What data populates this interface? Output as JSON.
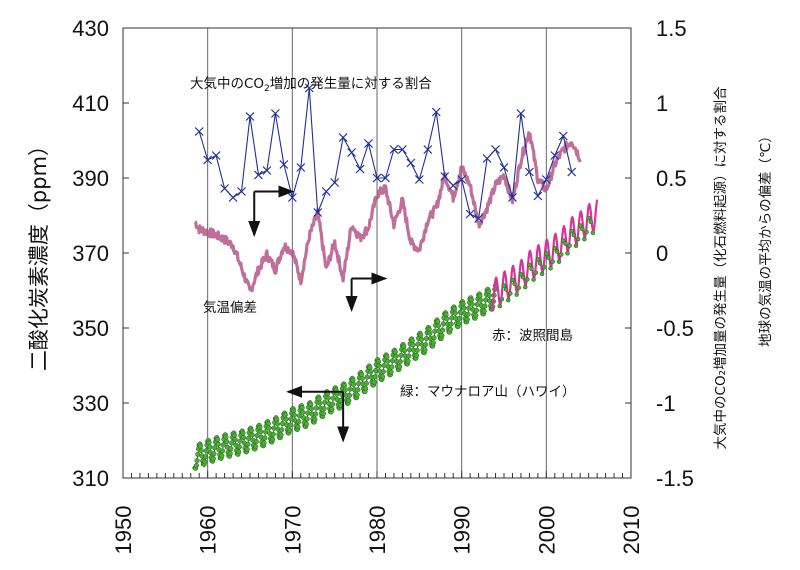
{
  "chart_data": {
    "type": "line",
    "title": "",
    "xlabel": "",
    "ylabel": "二酸化炭素濃度（ppm）",
    "y2label_1": "大気中のCO₂増加量の発生量（化石燃料起源）に対する割合",
    "y2label_2": "地球の気温の平均からの偏差（℃）",
    "xlim": [
      1950,
      2010
    ],
    "ylim": [
      310,
      430
    ],
    "y2lim": [
      -1.5,
      1.5
    ],
    "x_ticks": [
      "1950",
      "1960",
      "1970",
      "1980",
      "1990",
      "2000",
      "2010"
    ],
    "y_ticks": [
      "430",
      "410",
      "390",
      "370",
      "350",
      "330",
      "310"
    ],
    "y2_ticks": [
      "1.5",
      "1",
      "0.5",
      "0",
      "-0.5",
      "-1",
      "-1.5"
    ],
    "grid": "vertical",
    "annotations": {
      "ratio_label": "大気中のCO₂増加の発生量に対する割合",
      "ratio_label_main": "大気中のCO",
      "ratio_label_sub": "2",
      "ratio_label_rest": "増加の発生量に対する割合",
      "temp_label": "気温偏差",
      "hateruma_label": "赤：波照間島",
      "maunaloa_label": "緑：マウナロア山（ハワイ）"
    },
    "series": [
      {
        "name": "大気中のCO₂増加の発生量に対する割合",
        "axis": "right",
        "color": "#1f2f9a",
        "marker": "x",
        "x": [
          1959,
          1960,
          1961,
          1962,
          1963,
          1964,
          1965,
          1966,
          1967,
          1968,
          1969,
          1970,
          1971,
          1972,
          1973,
          1974,
          1975,
          1976,
          1977,
          1978,
          1979,
          1980,
          1981,
          1982,
          1983,
          1984,
          1985,
          1986,
          1987,
          1988,
          1989,
          1990,
          1991,
          1992,
          1993,
          1994,
          1995,
          1996,
          1997,
          1998,
          1999,
          2000,
          2001,
          2002,
          2003
        ],
        "values": [
          0.81,
          0.62,
          0.65,
          0.43,
          0.37,
          0.41,
          0.91,
          0.52,
          0.55,
          0.93,
          0.59,
          0.37,
          0.57,
          1.1,
          0.27,
          0.41,
          0.47,
          0.77,
          0.67,
          0.56,
          0.73,
          0.5,
          0.5,
          0.69,
          0.69,
          0.6,
          0.49,
          0.69,
          0.94,
          0.51,
          0.45,
          0.49,
          0.26,
          0.23,
          0.63,
          0.69,
          0.57,
          0.37,
          0.93,
          0.54,
          0.38,
          0.49,
          0.65,
          0.78,
          0.54
        ]
      },
      {
        "name": "気温偏差",
        "axis": "right",
        "color": "#b5568a",
        "x": [
          1958.5,
          1959,
          1960,
          1961,
          1962,
          1963,
          1964,
          1965,
          1966,
          1967,
          1968,
          1969,
          1970,
          1971,
          1972,
          1973,
          1974,
          1975,
          1976,
          1977,
          1978,
          1979,
          1980,
          1981,
          1982,
          1983,
          1984,
          1985,
          1986,
          1987,
          1988,
          1989,
          1990,
          1991,
          1992,
          1993,
          1994,
          1995,
          1996,
          1997,
          1998,
          1999,
          2000,
          2001,
          2002,
          2003,
          2004
        ],
        "values": [
          0.21,
          0.16,
          0.14,
          0.12,
          0.09,
          0.05,
          -0.1,
          -0.26,
          -0.11,
          -0.01,
          -0.11,
          0.05,
          0.01,
          -0.18,
          0.11,
          0.27,
          -0.11,
          0.07,
          -0.17,
          0.19,
          0.1,
          0.17,
          0.39,
          0.43,
          0.19,
          0.35,
          0.07,
          0.02,
          0.22,
          0.3,
          0.52,
          0.37,
          0.57,
          0.45,
          0.19,
          0.3,
          0.45,
          0.52,
          0.35,
          0.62,
          0.82,
          0.49,
          0.42,
          0.59,
          0.69,
          0.75,
          0.63
        ]
      },
      {
        "name": "緑：マウナロア山（ハワイ）",
        "axis": "left",
        "color": "#3d9a2c",
        "marker": "circle",
        "seasonal_amplitude_ppm": 3,
        "x": [
          1958.5,
          1960,
          1962,
          1964,
          1966,
          1968,
          1970,
          1972,
          1974,
          1976,
          1978,
          1980,
          1982,
          1984,
          1986,
          1988,
          1990,
          1992,
          1994
        ],
        "values": [
          315.5,
          317,
          318.5,
          319.5,
          321,
          323,
          325.5,
          327,
          330,
          332,
          335,
          338.5,
          341,
          344,
          347,
          351,
          354,
          356,
          358.5
        ]
      },
      {
        "name": "赤：波照間島",
        "axis": "left",
        "color": "#d6339e",
        "seasonal_amplitude_ppm": 4,
        "x": [
          1993.5,
          1995,
          1996,
          1997,
          1998,
          1999,
          2000,
          2001,
          2002,
          2003,
          2004,
          2005,
          2006
        ],
        "values": [
          358.5,
          361,
          362.5,
          364,
          366.5,
          368,
          369.5,
          371,
          373,
          375.5,
          377,
          379,
          380.5
        ]
      }
    ],
    "arrows": [
      {
        "from_series": "ratio",
        "directions": [
          "right",
          "down"
        ]
      },
      {
        "from_series": "temperature",
        "directions": [
          "right",
          "down"
        ]
      },
      {
        "from_series": "co2",
        "directions": [
          "left",
          "down"
        ]
      }
    ]
  }
}
